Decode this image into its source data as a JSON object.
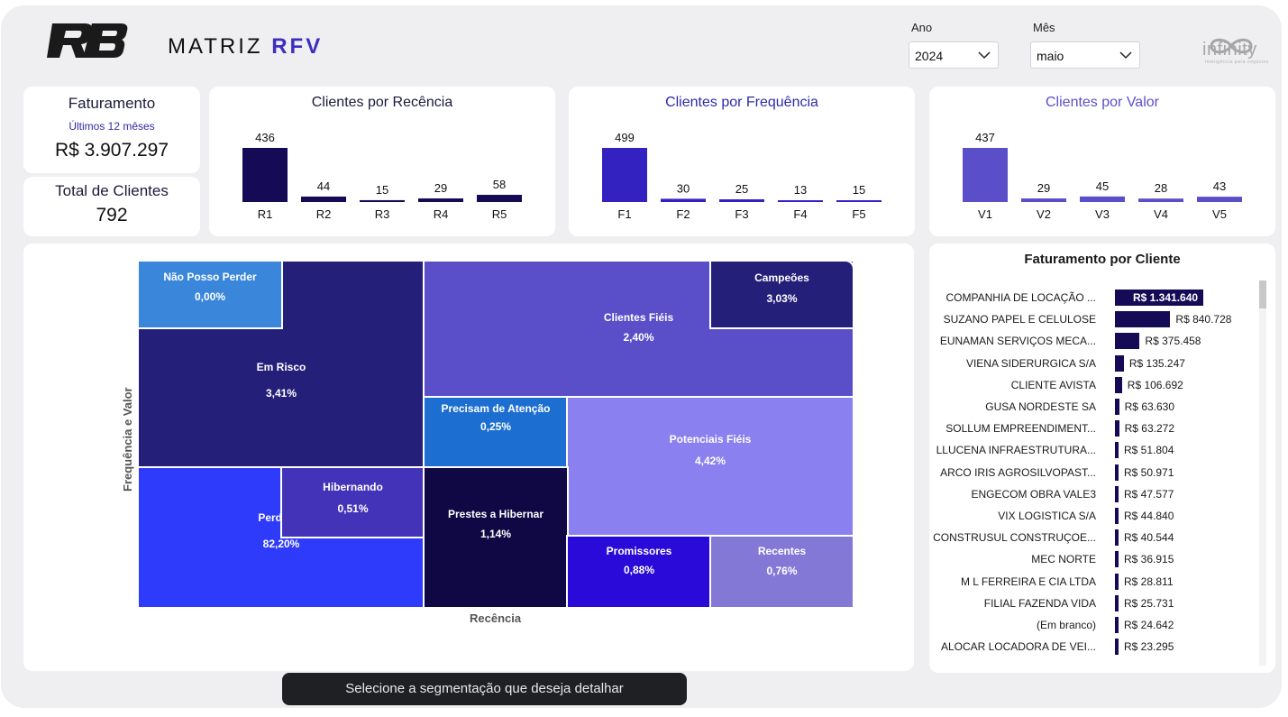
{
  "header": {
    "logo_text": "RB",
    "title_prefix": "MATRIZ",
    "title_highlight": "RFV",
    "brand_logo_text": "infinity",
    "brand_logo_tagline": "inteligência para negócios"
  },
  "slicers": {
    "year": {
      "label": "Ano",
      "value": "2024"
    },
    "month": {
      "label": "Mês",
      "value": "maio"
    }
  },
  "kpis": {
    "revenue": {
      "title": "Faturamento",
      "subtitle": "Últimos 12 mêses",
      "value": "R$ 3.907.297"
    },
    "clients": {
      "title": "Total de Clientes",
      "value": "792"
    }
  },
  "colors": {
    "recency": "#150a55",
    "frequency": "#3422c0",
    "value_v1": "#5b4fc9",
    "value": "#5b4fc9"
  },
  "treemap_axes": {
    "y": "Frequência e Valor",
    "x": "Recência"
  },
  "cta": {
    "label": "Selecione a segmentação que deseja detalhar"
  },
  "chart_data": [
    {
      "type": "bar",
      "title": "Clientes por Recência",
      "categories": [
        "R1",
        "R2",
        "R3",
        "R4",
        "R5"
      ],
      "values": [
        436,
        44,
        15,
        29,
        58
      ],
      "color": "#150a55"
    },
    {
      "type": "bar",
      "title": "Clientes por Frequência",
      "categories": [
        "F1",
        "F2",
        "F3",
        "F4",
        "F5"
      ],
      "values": [
        499,
        30,
        25,
        13,
        15
      ],
      "color": "#3422c0"
    },
    {
      "type": "bar",
      "title": "Clientes por Valor",
      "categories": [
        "V1",
        "V2",
        "V3",
        "V4",
        "V5"
      ],
      "values": [
        437,
        29,
        45,
        28,
        43
      ],
      "color": "#5b4fc9"
    },
    {
      "type": "heatmap",
      "subtype": "treemap",
      "xlabel": "Recência",
      "ylabel": "Frequência e Valor",
      "segments": [
        {
          "name": "Não Posso Perder",
          "share": "0,00%",
          "color": "#3a86db"
        },
        {
          "name": "Em Risco",
          "share": "3,41%",
          "color": "#24207a"
        },
        {
          "name": "Clientes Fiéis",
          "share": "2,40%",
          "color": "#5b4fc9"
        },
        {
          "name": "Campeões",
          "share": "3,03%",
          "color": "#24207a"
        },
        {
          "name": "Precisam de Atenção",
          "share": "0,25%",
          "color": "#1c6fd0"
        },
        {
          "name": "Potenciais Fiéis",
          "share": "4,42%",
          "color": "#8a80f0"
        },
        {
          "name": "Perdidos",
          "share": "82,20%",
          "color": "#2f3bfb"
        },
        {
          "name": "Hibernando",
          "share": "0,51%",
          "color": "#4333b8"
        },
        {
          "name": "Prestes a Hibernar",
          "share": "1,14%",
          "color": "#100845"
        },
        {
          "name": "Promissores",
          "share": "0,88%",
          "color": "#2a0ad8"
        },
        {
          "name": "Recentes",
          "share": "0,76%",
          "color": "#8378d6"
        }
      ]
    },
    {
      "type": "bar",
      "orientation": "horizontal",
      "title": "Faturamento por Cliente",
      "categories": [
        "COMPANHIA DE LOCAÇÃO ...",
        "SUZANO PAPEL E CELULOSE",
        "EUNAMAN SERVIÇOS MECA...",
        "VIENA SIDERURGICA S/A",
        "CLIENTE AVISTA",
        "GUSA NORDESTE SA",
        "SOLLUM EMPREENDIMENT...",
        "LLUCENA INFRAESTRUTURA...",
        "ARCO IRIS AGROSILVOPAST...",
        "ENGECOM OBRA VALE3",
        "VIX LOGISTICA S/A",
        "CONSTRUSUL CONSTRUÇOE...",
        "MEC NORTE",
        "M L FERREIRA E CIA LTDA",
        "FILIAL FAZENDA VIDA",
        "(Em branco)",
        "ALOCAR LOCADORA DE VEI..."
      ],
      "values": [
        1341640,
        840728,
        375458,
        135247,
        106692,
        63630,
        63272,
        51804,
        50971,
        47577,
        44840,
        40544,
        36915,
        28811,
        25731,
        24642,
        23295
      ],
      "labels": [
        "R$ 1.341.640",
        "R$ 840.728",
        "R$ 375.458",
        "R$ 135.247",
        "R$ 106.692",
        "R$ 63.630",
        "R$ 63.272",
        "R$ 51.804",
        "R$ 50.971",
        "R$ 47.577",
        "R$ 44.840",
        "R$ 40.544",
        "R$ 36.915",
        "R$ 28.811",
        "R$ 25.731",
        "R$ 24.642",
        "R$ 23.295"
      ],
      "color": "#150a55"
    }
  ]
}
